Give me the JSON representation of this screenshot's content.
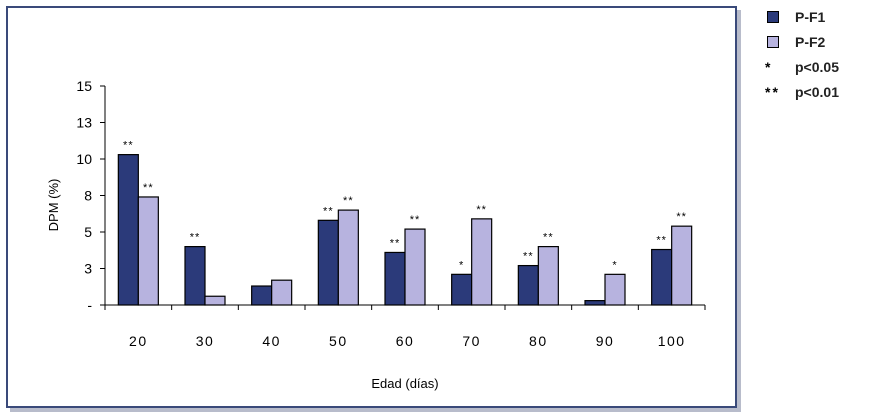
{
  "chart_data": {
    "type": "bar",
    "xlabel": "Edad (días)",
    "ylabel": "DPM (%)",
    "ylim": [
      0,
      15
    ],
    "yticks": [
      {
        "v": 0,
        "label": "-"
      },
      {
        "v": 2.5,
        "label": "3"
      },
      {
        "v": 5,
        "label": "5"
      },
      {
        "v": 7.5,
        "label": "8"
      },
      {
        "v": 10,
        "label": "10"
      },
      {
        "v": 12.5,
        "label": "13"
      },
      {
        "v": 15,
        "label": "15"
      }
    ],
    "categories": [
      "20",
      "30",
      "40",
      "50",
      "60",
      "70",
      "80",
      "90",
      "100"
    ],
    "series": [
      {
        "name": "P-F1",
        "color": "#2b3a7a",
        "values": [
          10.3,
          4.0,
          1.3,
          5.8,
          3.6,
          2.1,
          2.7,
          0.3,
          3.8
        ],
        "sig": [
          "**",
          "**",
          "",
          "**",
          "**",
          "*",
          "**",
          "",
          "**"
        ]
      },
      {
        "name": "P-F2",
        "color": "#b7b3df",
        "values": [
          7.4,
          0.6,
          1.7,
          6.5,
          5.2,
          5.9,
          4.0,
          2.1,
          5.4
        ],
        "sig": [
          "**",
          "",
          "",
          "**",
          "**",
          "**",
          "**",
          "*",
          "**"
        ]
      }
    ],
    "grid": false,
    "legend_position": "right"
  },
  "legend": {
    "items": [
      {
        "kind": "swatch",
        "color": "#2b3a7a",
        "label": "P-F1"
      },
      {
        "kind": "swatch",
        "color": "#b7b3df",
        "label": "P-F2"
      },
      {
        "kind": "symbol",
        "symbol": "*",
        "label": "p<0.05"
      },
      {
        "kind": "symbol",
        "symbol": "**",
        "label": "p<0.01"
      }
    ]
  }
}
